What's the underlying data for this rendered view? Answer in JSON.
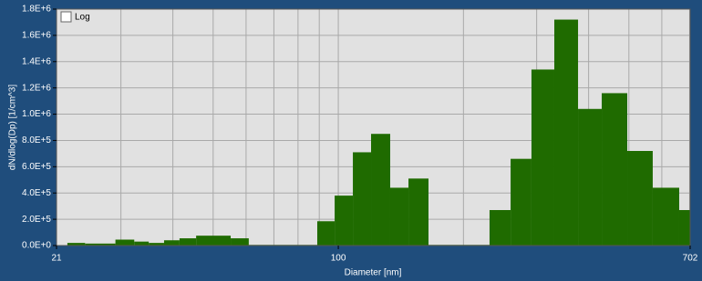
{
  "chart_data": {
    "type": "histogram",
    "x_label": "Diameter [nm]",
    "y_label": "dN/dlog(Dp) [1/cm^3]",
    "log_toggle": "Log",
    "xscale": "log",
    "color": "#1f6b00",
    "grid": true,
    "bins": [
      22.3,
      24.6,
      29.1,
      32.3,
      35.0,
      38.1,
      41.5,
      45.5,
      55.1,
      60.9,
      89.0,
      98.0,
      108.4,
      119.9,
      133.3,
      147.5,
      164.8,
      231.1,
      259.7,
      291.5,
      330.8,
      377.3,
      430.2,
      495.5,
      570.6,
      660.7,
      702
    ],
    "values": [
      20000,
      15000,
      45000,
      30000,
      20000,
      40000,
      55000,
      75000,
      55000,
      5000,
      185000,
      380000,
      710000,
      850000,
      440000,
      510000,
      5000,
      270000,
      660000,
      1340000,
      1720000,
      1040000,
      1160000,
      720000,
      440000,
      270000
    ],
    "xlim": [
      21,
      702
    ],
    "xticks": [
      21,
      100,
      702
    ],
    "xgrid": [
      30,
      40,
      50,
      60,
      70,
      80,
      90,
      200,
      300,
      400,
      500,
      600,
      700
    ],
    "ylim": [
      0,
      1800000
    ],
    "yticks": [
      {
        "value": 0,
        "label": "0.0E+0"
      },
      {
        "value": 200000,
        "label": "2.0E+5"
      },
      {
        "value": 400000,
        "label": "4.0E+5"
      },
      {
        "value": 600000,
        "label": "6.0E+5"
      },
      {
        "value": 800000,
        "label": "8.0E+5"
      },
      {
        "value": 1000000,
        "label": "1.0E+6"
      },
      {
        "value": 1200000,
        "label": "1.2E+6"
      },
      {
        "value": 1400000,
        "label": "1.4E+6"
      },
      {
        "value": 1600000,
        "label": "1.6E+6"
      },
      {
        "value": 1800000,
        "label": "1.8E+6"
      }
    ]
  }
}
